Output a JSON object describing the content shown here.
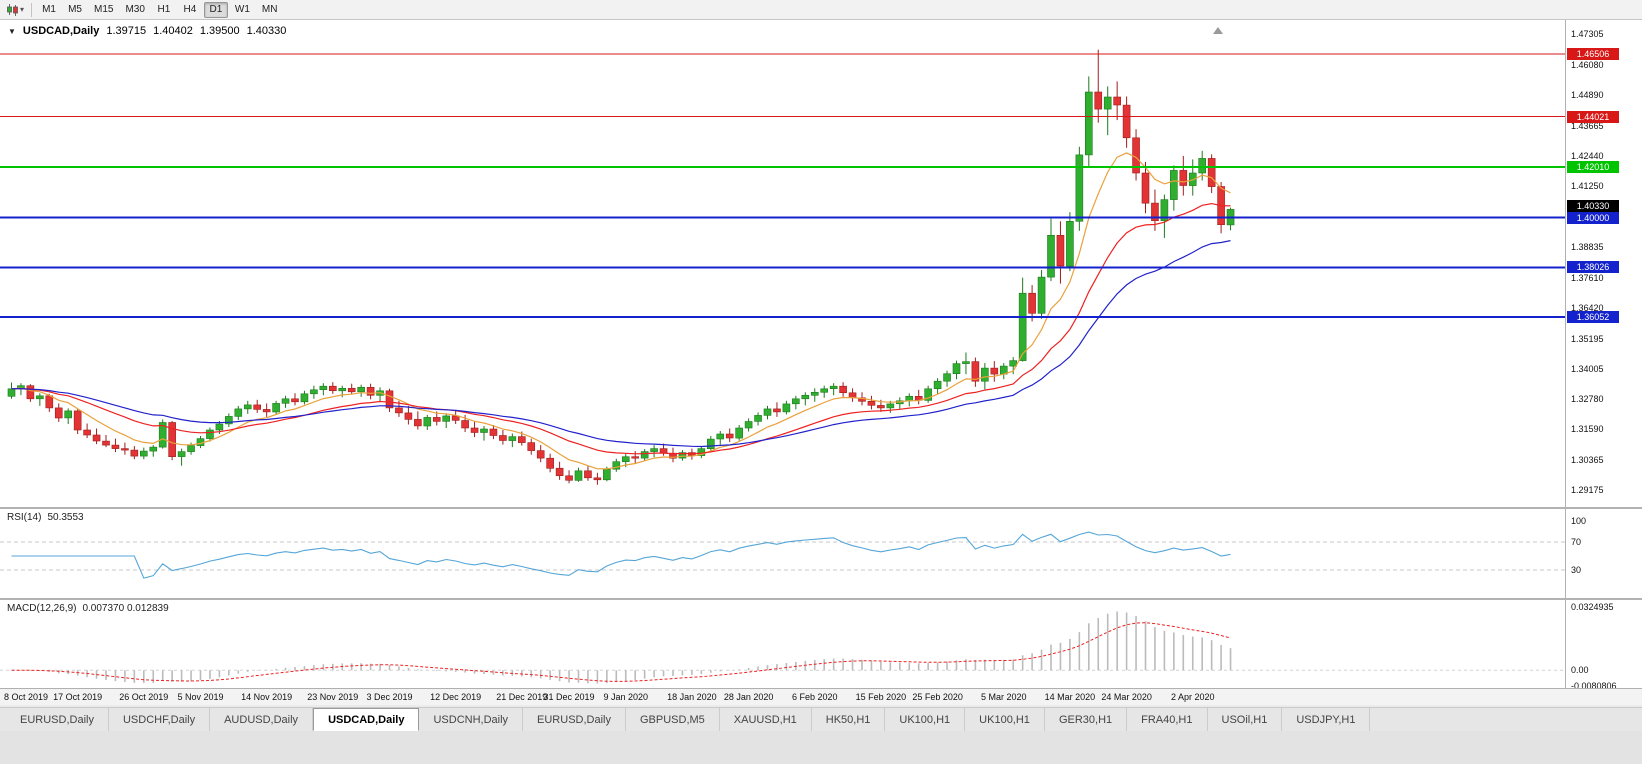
{
  "toolbar": {
    "timeframes": [
      "M1",
      "M5",
      "M15",
      "M30",
      "H1",
      "H4",
      "D1",
      "W1",
      "MN"
    ],
    "active_timeframe": "D1"
  },
  "chart": {
    "symbol_title": "USDCAD,Daily",
    "open": "1.39715",
    "high": "1.40402",
    "low": "1.39500",
    "close": "1.40330"
  },
  "chart_data": {
    "type": "candlestick",
    "symbol": "USDCAD",
    "timeframe": "Daily",
    "price_max": 1.47305,
    "price_min": 1.29175,
    "price_axis_ticks": [
      1.47305,
      1.4608,
      1.4489,
      1.43665,
      1.4244,
      1.4125,
      1.38835,
      1.3761,
      1.3642,
      1.35195,
      1.34005,
      1.3278,
      1.3159,
      1.30365,
      1.29175
    ],
    "hlines": [
      {
        "price": 1.46506,
        "label": "1.46506",
        "color": "#d81717",
        "width": 1
      },
      {
        "price": 1.44021,
        "label": "1.44021",
        "color": "#d81717",
        "width": 1
      },
      {
        "price": 1.4201,
        "label": "1.42010",
        "color": "#00c400",
        "width": 2
      },
      {
        "price": 1.4,
        "label": "1.40000",
        "color": "#1322cc",
        "width": 2
      },
      {
        "price": 1.38026,
        "label": "1.38026",
        "color": "#1322cc",
        "width": 2
      },
      {
        "price": 1.36052,
        "label": "1.36052",
        "color": "#1322cc",
        "width": 2
      }
    ],
    "current_price": {
      "price": 1.4033,
      "label": "1.40330",
      "color": "#000000"
    },
    "up_color": "#2fae2f",
    "down_color": "#e23434",
    "moving_averages": [
      {
        "name": "fast",
        "period": 8,
        "color": "#e9a13b"
      },
      {
        "name": "mid",
        "period": 20,
        "color": "#ee2222"
      },
      {
        "name": "slow",
        "period": 34,
        "color": "#2222cc"
      }
    ],
    "x_labels": [
      {
        "text": "8 Oct 2019",
        "i": 0
      },
      {
        "text": "17 Oct 2019",
        "i": 7
      },
      {
        "text": "26 Oct 2019",
        "i": 14
      },
      {
        "text": "5 Nov 2019",
        "i": 20
      },
      {
        "text": "14 Nov 2019",
        "i": 27
      },
      {
        "text": "23 Nov 2019",
        "i": 34
      },
      {
        "text": "3 Dec 2019",
        "i": 40
      },
      {
        "text": "12 Dec 2019",
        "i": 47
      },
      {
        "text": "21 Dec 2019",
        "i": 54
      },
      {
        "text": "31 Dec 2019",
        "i": 59
      },
      {
        "text": "9 Jan 2020",
        "i": 65
      },
      {
        "text": "18 Jan 2020",
        "i": 72
      },
      {
        "text": "28 Jan 2020",
        "i": 78
      },
      {
        "text": "6 Feb 2020",
        "i": 85
      },
      {
        "text": "15 Feb 2020",
        "i": 92
      },
      {
        "text": "25 Feb 2020",
        "i": 98
      },
      {
        "text": "5 Mar 2020",
        "i": 105
      },
      {
        "text": "14 Mar 2020",
        "i": 112
      },
      {
        "text": "24 Mar 2020",
        "i": 118
      },
      {
        "text": "2 Apr 2020",
        "i": 125
      }
    ],
    "candles": [
      [
        1.329,
        1.3345,
        1.328,
        1.332
      ],
      [
        1.332,
        1.3342,
        1.3295,
        1.3332
      ],
      [
        1.3332,
        1.3338,
        1.3268,
        1.328
      ],
      [
        1.328,
        1.3302,
        1.3252,
        1.3292
      ],
      [
        1.3292,
        1.33,
        1.3228,
        1.3244
      ],
      [
        1.3244,
        1.3262,
        1.3188,
        1.3204
      ],
      [
        1.3204,
        1.3242,
        1.318,
        1.3232
      ],
      [
        1.3232,
        1.3238,
        1.314,
        1.3156
      ],
      [
        1.3156,
        1.3182,
        1.3124,
        1.3136
      ],
      [
        1.3136,
        1.3162,
        1.31,
        1.3112
      ],
      [
        1.3112,
        1.3136,
        1.3088,
        1.3096
      ],
      [
        1.3096,
        1.3122,
        1.3068,
        1.3082
      ],
      [
        1.3082,
        1.3106,
        1.3058,
        1.3076
      ],
      [
        1.3076,
        1.3092,
        1.304,
        1.3052
      ],
      [
        1.3052,
        1.3086,
        1.304,
        1.3072
      ],
      [
        1.3072,
        1.3096,
        1.305,
        1.3088
      ],
      [
        1.3088,
        1.3198,
        1.3082,
        1.3186
      ],
      [
        1.3186,
        1.3192,
        1.3036,
        1.305
      ],
      [
        1.305,
        1.3082,
        1.3014,
        1.307
      ],
      [
        1.307,
        1.3106,
        1.3058,
        1.3094
      ],
      [
        1.3094,
        1.3132,
        1.3084,
        1.3122
      ],
      [
        1.3122,
        1.3166,
        1.311,
        1.3156
      ],
      [
        1.3156,
        1.3192,
        1.314,
        1.318
      ],
      [
        1.318,
        1.3222,
        1.3168,
        1.321
      ],
      [
        1.321,
        1.3252,
        1.3196,
        1.324
      ],
      [
        1.324,
        1.3272,
        1.322,
        1.3256
      ],
      [
        1.3256,
        1.3276,
        1.3224,
        1.3238
      ],
      [
        1.3238,
        1.3262,
        1.3208,
        1.3228
      ],
      [
        1.3228,
        1.3272,
        1.3218,
        1.3262
      ],
      [
        1.3262,
        1.3292,
        1.3244,
        1.328
      ],
      [
        1.328,
        1.3302,
        1.3254,
        1.3268
      ],
      [
        1.3268,
        1.3312,
        1.3258,
        1.33
      ],
      [
        1.33,
        1.3332,
        1.328,
        1.3316
      ],
      [
        1.3316,
        1.3342,
        1.3294,
        1.333
      ],
      [
        1.333,
        1.3346,
        1.33,
        1.3312
      ],
      [
        1.3312,
        1.3332,
        1.3286,
        1.3322
      ],
      [
        1.3322,
        1.334,
        1.3298,
        1.3308
      ],
      [
        1.3308,
        1.3336,
        1.3288,
        1.3326
      ],
      [
        1.3326,
        1.334,
        1.3278,
        1.3294
      ],
      [
        1.3294,
        1.3326,
        1.327,
        1.3312
      ],
      [
        1.3312,
        1.332,
        1.3228,
        1.3244
      ],
      [
        1.3244,
        1.3272,
        1.3208,
        1.3224
      ],
      [
        1.3224,
        1.3252,
        1.3178,
        1.3198
      ],
      [
        1.3198,
        1.323,
        1.3158,
        1.3172
      ],
      [
        1.3172,
        1.3216,
        1.3156,
        1.3206
      ],
      [
        1.3206,
        1.323,
        1.3174,
        1.319
      ],
      [
        1.319,
        1.3222,
        1.3164,
        1.3212
      ],
      [
        1.3212,
        1.3236,
        1.318,
        1.3194
      ],
      [
        1.3194,
        1.3216,
        1.3148,
        1.3164
      ],
      [
        1.3164,
        1.319,
        1.3128,
        1.3146
      ],
      [
        1.3146,
        1.3172,
        1.3114,
        1.316
      ],
      [
        1.316,
        1.3176,
        1.312,
        1.3134
      ],
      [
        1.3134,
        1.3156,
        1.3098,
        1.3114
      ],
      [
        1.3114,
        1.3142,
        1.3088,
        1.313
      ],
      [
        1.313,
        1.315,
        1.3094,
        1.3106
      ],
      [
        1.3106,
        1.3122,
        1.3058,
        1.3074
      ],
      [
        1.3074,
        1.3096,
        1.3028,
        1.3044
      ],
      [
        1.3044,
        1.3062,
        1.2988,
        1.3004
      ],
      [
        1.3004,
        1.303,
        1.2958,
        1.2974
      ],
      [
        1.2974,
        1.2996,
        1.2944,
        1.2956
      ],
      [
        1.2956,
        1.3006,
        1.295,
        1.2994
      ],
      [
        1.2994,
        1.3012,
        1.2954,
        1.2966
      ],
      [
        1.2966,
        1.2986,
        1.2938,
        1.2958
      ],
      [
        1.2958,
        1.301,
        1.2952,
        1.3
      ],
      [
        1.3,
        1.3042,
        1.299,
        1.303
      ],
      [
        1.303,
        1.3062,
        1.3008,
        1.305
      ],
      [
        1.305,
        1.3072,
        1.3024,
        1.3044
      ],
      [
        1.3044,
        1.308,
        1.3034,
        1.307
      ],
      [
        1.307,
        1.3096,
        1.3048,
        1.3082
      ],
      [
        1.3082,
        1.3102,
        1.3054,
        1.3064
      ],
      [
        1.3064,
        1.3086,
        1.3028,
        1.3044
      ],
      [
        1.3044,
        1.3076,
        1.3034,
        1.3066
      ],
      [
        1.3066,
        1.3082,
        1.3038,
        1.3054
      ],
      [
        1.3054,
        1.3092,
        1.3044,
        1.3082
      ],
      [
        1.3082,
        1.3132,
        1.307,
        1.312
      ],
      [
        1.312,
        1.3152,
        1.3098,
        1.314
      ],
      [
        1.314,
        1.3162,
        1.3108,
        1.3124
      ],
      [
        1.3124,
        1.3176,
        1.3114,
        1.3164
      ],
      [
        1.3164,
        1.3202,
        1.315,
        1.319
      ],
      [
        1.319,
        1.3226,
        1.3174,
        1.3214
      ],
      [
        1.3214,
        1.3252,
        1.3198,
        1.324
      ],
      [
        1.324,
        1.3266,
        1.3208,
        1.3228
      ],
      [
        1.3228,
        1.3272,
        1.3218,
        1.326
      ],
      [
        1.326,
        1.3292,
        1.3238,
        1.328
      ],
      [
        1.328,
        1.3306,
        1.3254,
        1.3294
      ],
      [
        1.3294,
        1.3322,
        1.3268,
        1.3306
      ],
      [
        1.3306,
        1.3332,
        1.3284,
        1.332
      ],
      [
        1.332,
        1.3342,
        1.3294,
        1.333
      ],
      [
        1.333,
        1.3346,
        1.3288,
        1.3304
      ],
      [
        1.3304,
        1.3322,
        1.3268,
        1.3284
      ],
      [
        1.3284,
        1.3306,
        1.3254,
        1.327
      ],
      [
        1.327,
        1.3292,
        1.3238,
        1.3254
      ],
      [
        1.3254,
        1.3276,
        1.3228,
        1.3244
      ],
      [
        1.3244,
        1.3272,
        1.3224,
        1.326
      ],
      [
        1.326,
        1.3286,
        1.3238,
        1.3272
      ],
      [
        1.3272,
        1.3302,
        1.325,
        1.329
      ],
      [
        1.329,
        1.3316,
        1.3258,
        1.3274
      ],
      [
        1.3274,
        1.3332,
        1.3264,
        1.332
      ],
      [
        1.332,
        1.3362,
        1.33,
        1.335
      ],
      [
        1.335,
        1.3392,
        1.3328,
        1.338
      ],
      [
        1.338,
        1.3432,
        1.3358,
        1.342
      ],
      [
        1.342,
        1.3464,
        1.3378,
        1.3428
      ],
      [
        1.3428,
        1.3444,
        1.3328,
        1.335
      ],
      [
        1.335,
        1.3422,
        1.3318,
        1.3402
      ],
      [
        1.3402,
        1.343,
        1.3348,
        1.3378
      ],
      [
        1.3378,
        1.3422,
        1.3358,
        1.341
      ],
      [
        1.341,
        1.3446,
        1.3378,
        1.3432
      ],
      [
        1.3432,
        1.3762,
        1.3428,
        1.37
      ],
      [
        1.37,
        1.3732,
        1.3588,
        1.362
      ],
      [
        1.362,
        1.3792,
        1.3598,
        1.3764
      ],
      [
        1.3764,
        1.3996,
        1.3748,
        1.393
      ],
      [
        1.393,
        1.3986,
        1.3738,
        1.3808
      ],
      [
        1.3808,
        1.4022,
        1.3788,
        1.3986
      ],
      [
        1.3986,
        1.4282,
        1.3948,
        1.425
      ],
      [
        1.425,
        1.4562,
        1.4198,
        1.45
      ],
      [
        1.45,
        1.4668,
        1.4378,
        1.4432
      ],
      [
        1.4432,
        1.4522,
        1.4328,
        1.448
      ],
      [
        1.448,
        1.4542,
        1.4388,
        1.4448
      ],
      [
        1.4448,
        1.4482,
        1.4278,
        1.4318
      ],
      [
        1.4318,
        1.4352,
        1.4148,
        1.4178
      ],
      [
        1.4178,
        1.4222,
        1.4018,
        1.4058
      ],
      [
        1.4058,
        1.4112,
        1.3948,
        1.3988
      ],
      [
        1.3988,
        1.4092,
        1.392,
        1.4072
      ],
      [
        1.4072,
        1.4208,
        1.4028,
        1.4188
      ],
      [
        1.4188,
        1.4246,
        1.4088,
        1.4128
      ],
      [
        1.4128,
        1.4232,
        1.4088,
        1.4178
      ],
      [
        1.4178,
        1.4266,
        1.4148,
        1.4236
      ],
      [
        1.4236,
        1.4252,
        1.4098,
        1.4124
      ],
      [
        1.4124,
        1.4142,
        1.3938,
        1.3972
      ],
      [
        1.39715,
        1.40402,
        1.395,
        1.4033
      ]
    ],
    "rsi": {
      "label": "RSI(14)",
      "value": "50.3553",
      "period": 14,
      "levels": [
        100,
        70,
        30
      ],
      "color": "#55a6d8"
    },
    "macd": {
      "label": "MACD(12,26,9)",
      "value": "0.007370 0.012839",
      "fast": 12,
      "slow": 26,
      "signal": 9,
      "axis_max": 0.0324935,
      "axis_min": -0.0080806,
      "axis_labels": [
        "0.0324935",
        "0.00",
        "-0.0080806"
      ],
      "hist_color": "#bbbbbb",
      "signal_color": "#ee2222"
    }
  },
  "tabs": [
    "EURUSD,Daily",
    "USDCHF,Daily",
    "AUDUSD,Daily",
    "USDCAD,Daily",
    "USDCNH,Daily",
    "EURUSD,Daily",
    "GBPUSD,M5",
    "XAUUSD,H1",
    "HK50,H1",
    "UK100,H1",
    "UK100,H1",
    "GER30,H1",
    "FRA40,H1",
    "USOil,H1",
    "USDJPY,H1"
  ],
  "active_tab_index": 3
}
